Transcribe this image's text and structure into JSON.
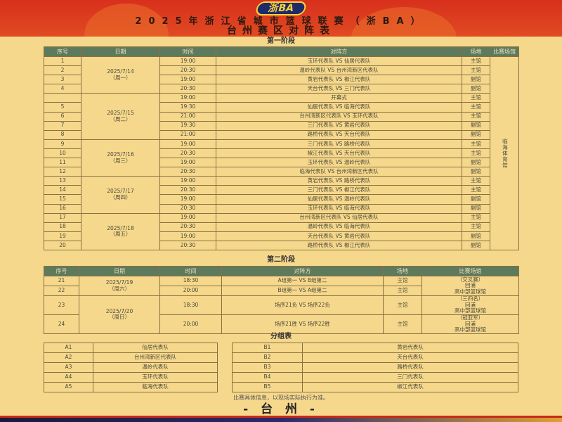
{
  "header": {
    "logo": "浙BA",
    "title": "2025年浙江省城市篮球联赛（浙BA）",
    "subtitle": "台州赛区对阵表"
  },
  "stage1": {
    "title": "第一阶段",
    "columns": [
      "序号",
      "日期",
      "时间",
      "对阵方",
      "场地",
      "比赛场馆"
    ],
    "venue": "临海体育馆",
    "days": [
      {
        "date": "2025/7/14",
        "weekday": "（周一）",
        "rows": [
          [
            "1",
            "19:00",
            "玉环代表队 VS 仙居代表队",
            "主馆"
          ],
          [
            "2",
            "20:30",
            "温岭代表队 VS 台州湾新区代表队",
            "主馆"
          ],
          [
            "3",
            "19:00",
            "黄岩代表队 VS 椒江代表队",
            "副馆"
          ],
          [
            "4",
            "20:30",
            "天台代表队 VS 三门代表队",
            "副馆"
          ]
        ]
      },
      {
        "date": "2025/7/15",
        "weekday": "（周二）",
        "rows": [
          [
            "",
            "19:00",
            "开幕式",
            "主馆"
          ],
          [
            "5",
            "19:30",
            "仙居代表队 VS 临海代表队",
            "主馆"
          ],
          [
            "6",
            "21:00",
            "台州湾新区代表队 VS 玉环代表队",
            "主馆"
          ],
          [
            "7",
            "19:30",
            "三门代表队 VS 黄岩代表队",
            "副馆"
          ],
          [
            "8",
            "21:00",
            "路桥代表队 VS 天台代表队",
            "副馆"
          ]
        ]
      },
      {
        "date": "2025/7/16",
        "weekday": "（周三）",
        "rows": [
          [
            "9",
            "19:00",
            "三门代表队 VS 路桥代表队",
            "主馆"
          ],
          [
            "10",
            "20:30",
            "椒江代表队 VS 天台代表队",
            "主馆"
          ],
          [
            "11",
            "19:00",
            "玉环代表队 VS 温岭代表队",
            "副馆"
          ],
          [
            "12",
            "20:30",
            "临海代表队 VS 台州湾新区代表队",
            "副馆"
          ]
        ]
      },
      {
        "date": "2025/7/17",
        "weekday": "（周四）",
        "rows": [
          [
            "13",
            "19:00",
            "黄岩代表队 VS 路桥代表队",
            "主馆"
          ],
          [
            "14",
            "20:30",
            "三门代表队 VS 椒江代表队",
            "主馆"
          ],
          [
            "15",
            "19:00",
            "仙居代表队 VS 温岭代表队",
            "副馆"
          ],
          [
            "16",
            "20:30",
            "玉环代表队 VS 临海代表队",
            "副馆"
          ]
        ]
      },
      {
        "date": "2025/7/18",
        "weekday": "（周五）",
        "rows": [
          [
            "17",
            "19:00",
            "台州湾新区代表队 VS 仙居代表队",
            "主馆"
          ],
          [
            "18",
            "20:30",
            "温岭代表队 VS 临海代表队",
            "主馆"
          ],
          [
            "19",
            "19:00",
            "天台代表队 VS 黄岩代表队",
            "副馆"
          ],
          [
            "20",
            "20:30",
            "路桥代表队 VS 椒江代表队",
            "副馆"
          ]
        ]
      }
    ]
  },
  "stage2": {
    "title": "第二阶段",
    "columns": [
      "序号",
      "日期",
      "时间",
      "对阵方",
      "场地",
      "比赛场馆"
    ],
    "days": [
      {
        "date": "2025/7/19",
        "weekday": "（周六）",
        "rows": [
          [
            "21",
            "18:30",
            "A组第一 VS B组第二",
            "主馆"
          ],
          [
            "22",
            "20:00",
            "B组第一 VS A组第二",
            "主馆"
          ]
        ]
      },
      {
        "date": "2025/7/20",
        "weekday": "（周日）",
        "rows": [
          [
            "23",
            "18:30",
            "场序21负 VS 场序22负",
            "主馆"
          ],
          [
            "24",
            "20:00",
            "场序21胜 VS 场序22胜",
            "主馆"
          ]
        ]
      }
    ],
    "venues": [
      {
        "round": "（交叉赛）",
        "line1": "回浦",
        "line2": "高中部篮球馆"
      },
      {
        "round": "（三四名）",
        "line1": "回浦",
        "line2": "高中部篮球馆"
      },
      {
        "round": "（冠亚军）",
        "line1": "回浦",
        "line2": "高中部篮球馆"
      }
    ]
  },
  "groups": {
    "title": "分组表",
    "A": [
      [
        "A1",
        "仙居代表队"
      ],
      [
        "A2",
        "台州湾新区代表队"
      ],
      [
        "A3",
        "温岭代表队"
      ],
      [
        "A4",
        "玉环代表队"
      ],
      [
        "A5",
        "临海代表队"
      ]
    ],
    "B": [
      [
        "B1",
        "黄岩代表队"
      ],
      [
        "B2",
        "天台代表队"
      ],
      [
        "B3",
        "路桥代表队"
      ],
      [
        "B4",
        "三门代表队"
      ],
      [
        "B5",
        "椒江代表队"
      ]
    ]
  },
  "footer": {
    "note": "比赛具体信息，以现场实际执行为准。",
    "city": "- 台 州 -"
  },
  "colors": {
    "header_red": "#d8301c",
    "table_header": "#5e7a5c",
    "background": "#f6d88c"
  }
}
